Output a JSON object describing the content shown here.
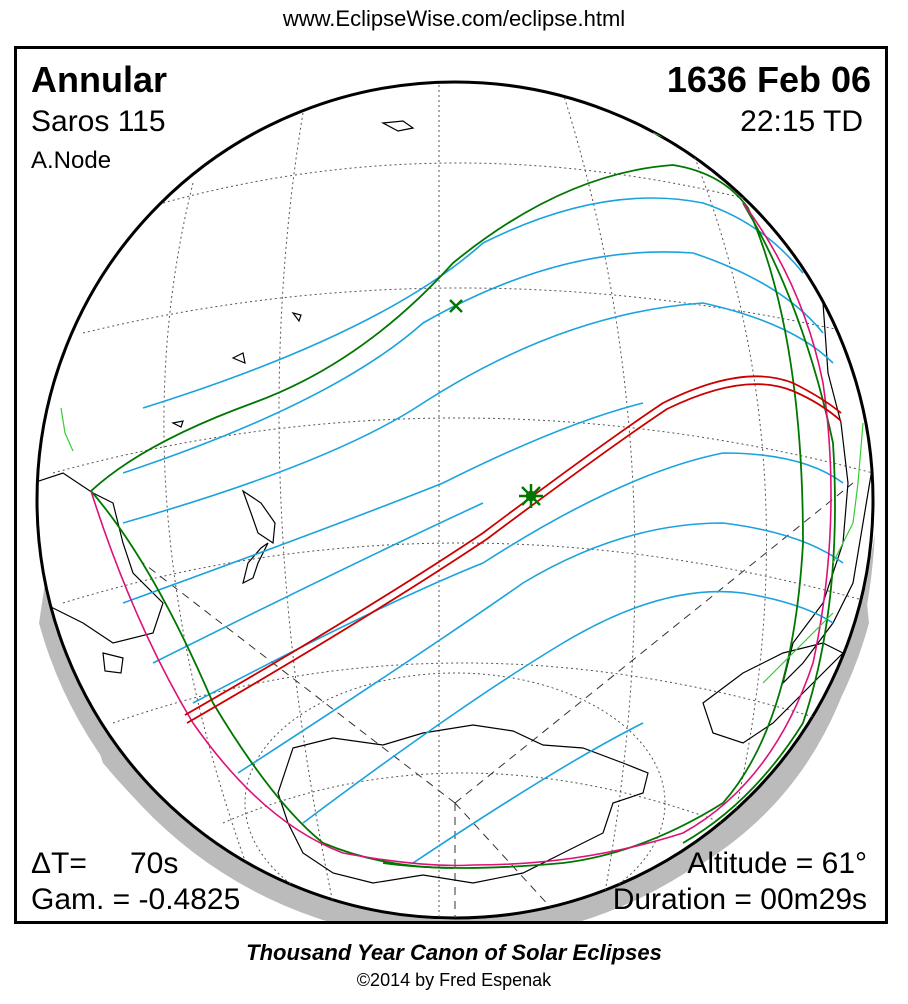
{
  "header": {
    "url": "www.EclipseWise.com/eclipse.html"
  },
  "eclipse": {
    "type": "Annular",
    "date": "1636 Feb 06",
    "saros": "Saros 115",
    "time": "22:15 TD",
    "node": "A.Node"
  },
  "stats": {
    "delta_t_label": "ΔT=",
    "delta_t_value": "70s",
    "gamma": "Gam. = -0.4825",
    "altitude": "Altitude = 61°",
    "duration": "Duration = 00m29s"
  },
  "colors": {
    "central_path": "#cc0000",
    "penumbral_limits": "#007700",
    "partial_contours": "#1aa3dd",
    "rise_set_curves": "#dd1177",
    "shadow": "#bbbbbb"
  },
  "footer": {
    "title": "Thousand Year Canon of Solar Eclipses",
    "copyright": "©2014 by Fred Espenak"
  }
}
